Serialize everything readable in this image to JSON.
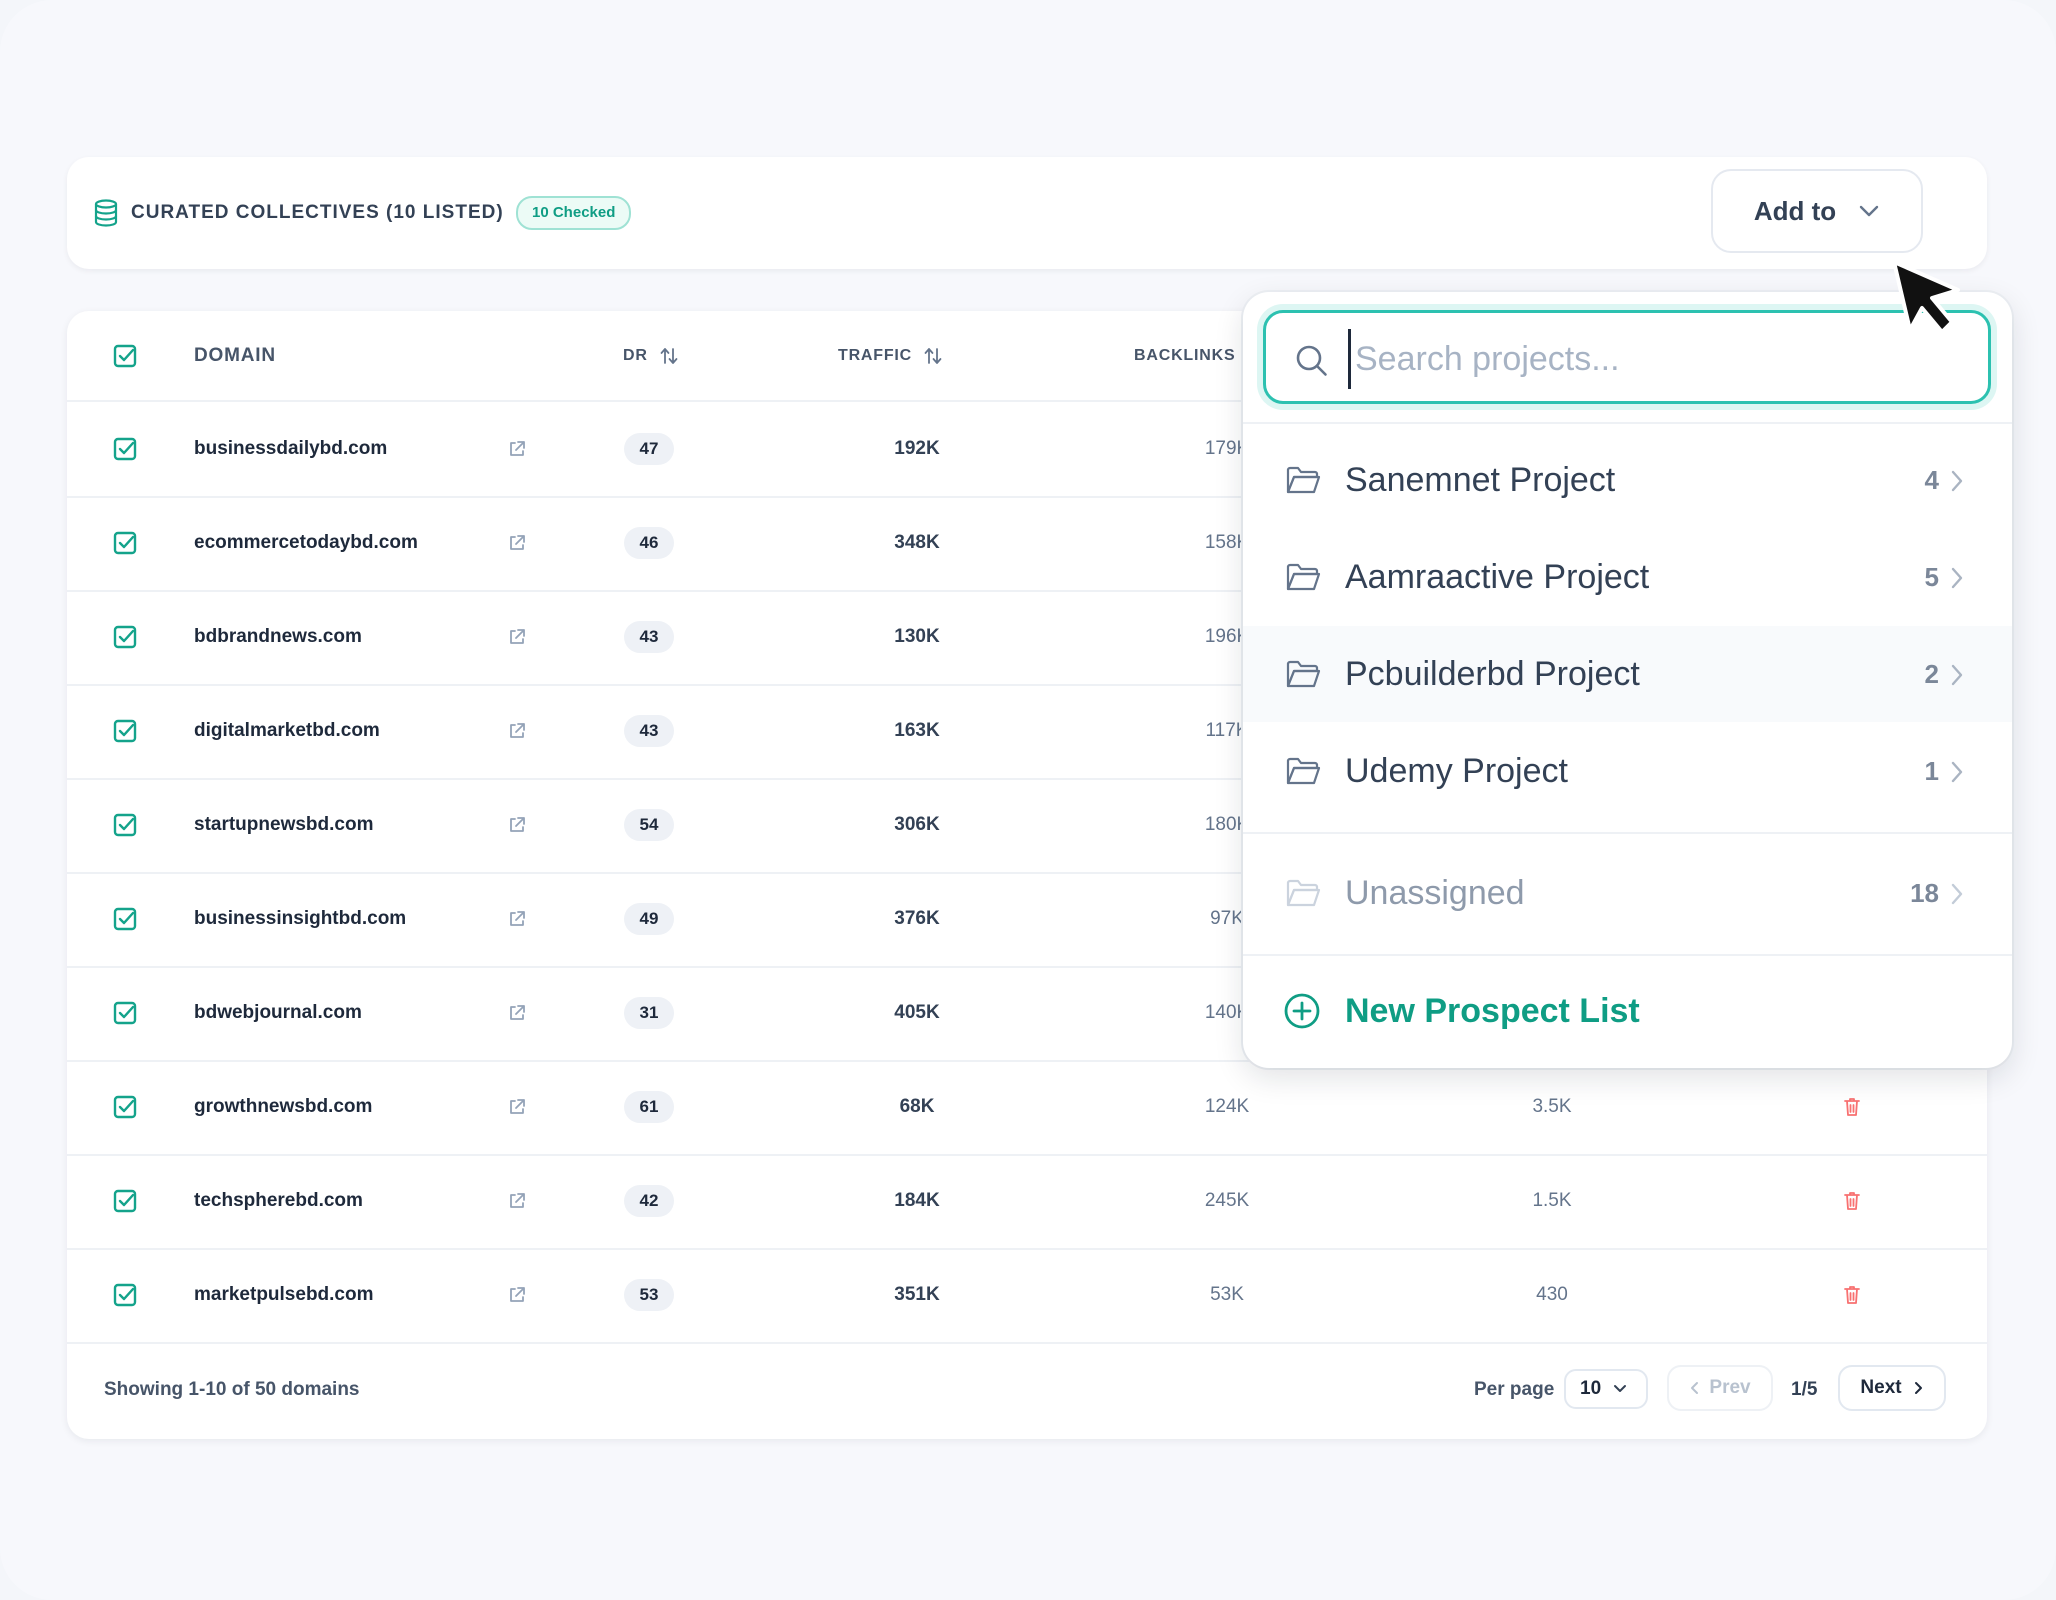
{
  "header": {
    "title": "CURATED COLLECTIVES (10 LISTED)",
    "checked_badge": "10 Checked",
    "add_to_label": "Add to"
  },
  "table": {
    "columns": {
      "domain": "DOMAIN",
      "dr": "DR",
      "traffic": "TRAFFIC",
      "backlinks": "BACKLINKS"
    },
    "rows": [
      {
        "domain": "businessdailybd.com",
        "dr": "47",
        "traffic": "192K",
        "backlinks": "179K",
        "rd": ""
      },
      {
        "domain": "ecommercetodaybd.com",
        "dr": "46",
        "traffic": "348K",
        "backlinks": "158K",
        "rd": ""
      },
      {
        "domain": "bdbrandnews.com",
        "dr": "43",
        "traffic": "130K",
        "backlinks": "196K",
        "rd": ""
      },
      {
        "domain": "digitalmarketbd.com",
        "dr": "43",
        "traffic": "163K",
        "backlinks": "117K",
        "rd": ""
      },
      {
        "domain": "startupnewsbd.com",
        "dr": "54",
        "traffic": "306K",
        "backlinks": "180K",
        "rd": ""
      },
      {
        "domain": "businessinsightbd.com",
        "dr": "49",
        "traffic": "376K",
        "backlinks": "97K",
        "rd": ""
      },
      {
        "domain": "bdwebjournal.com",
        "dr": "31",
        "traffic": "405K",
        "backlinks": "140K",
        "rd": ""
      },
      {
        "domain": "growthnewsbd.com",
        "dr": "61",
        "traffic": "68K",
        "backlinks": "124K",
        "rd": "3.5K"
      },
      {
        "domain": "techspherebd.com",
        "dr": "42",
        "traffic": "184K",
        "backlinks": "245K",
        "rd": "1.5K"
      },
      {
        "domain": "marketpulsebd.com",
        "dr": "53",
        "traffic": "351K",
        "backlinks": "53K",
        "rd": "430"
      }
    ]
  },
  "footer": {
    "showing": "Showing 1-10 of 50 domains",
    "per_page_label": "Per page",
    "per_page_value": "10",
    "prev_label": "Prev",
    "page_indicator": "1/5",
    "next_label": "Next"
  },
  "dropdown": {
    "search_placeholder": "Search projects...",
    "projects": [
      {
        "name": "Sanemnet Project",
        "count": "4"
      },
      {
        "name": "Aamraactive Project",
        "count": "5"
      },
      {
        "name": "Pcbuilderbd Project",
        "count": "2"
      },
      {
        "name": "Udemy Project",
        "count": "1"
      }
    ],
    "unassigned": {
      "name": "Unassigned",
      "count": "18"
    },
    "new_list_label": "New Prospect List"
  },
  "colors": {
    "accent": "#0f9d84",
    "accent_border": "#2cc1b0",
    "delete": "#f87171"
  }
}
